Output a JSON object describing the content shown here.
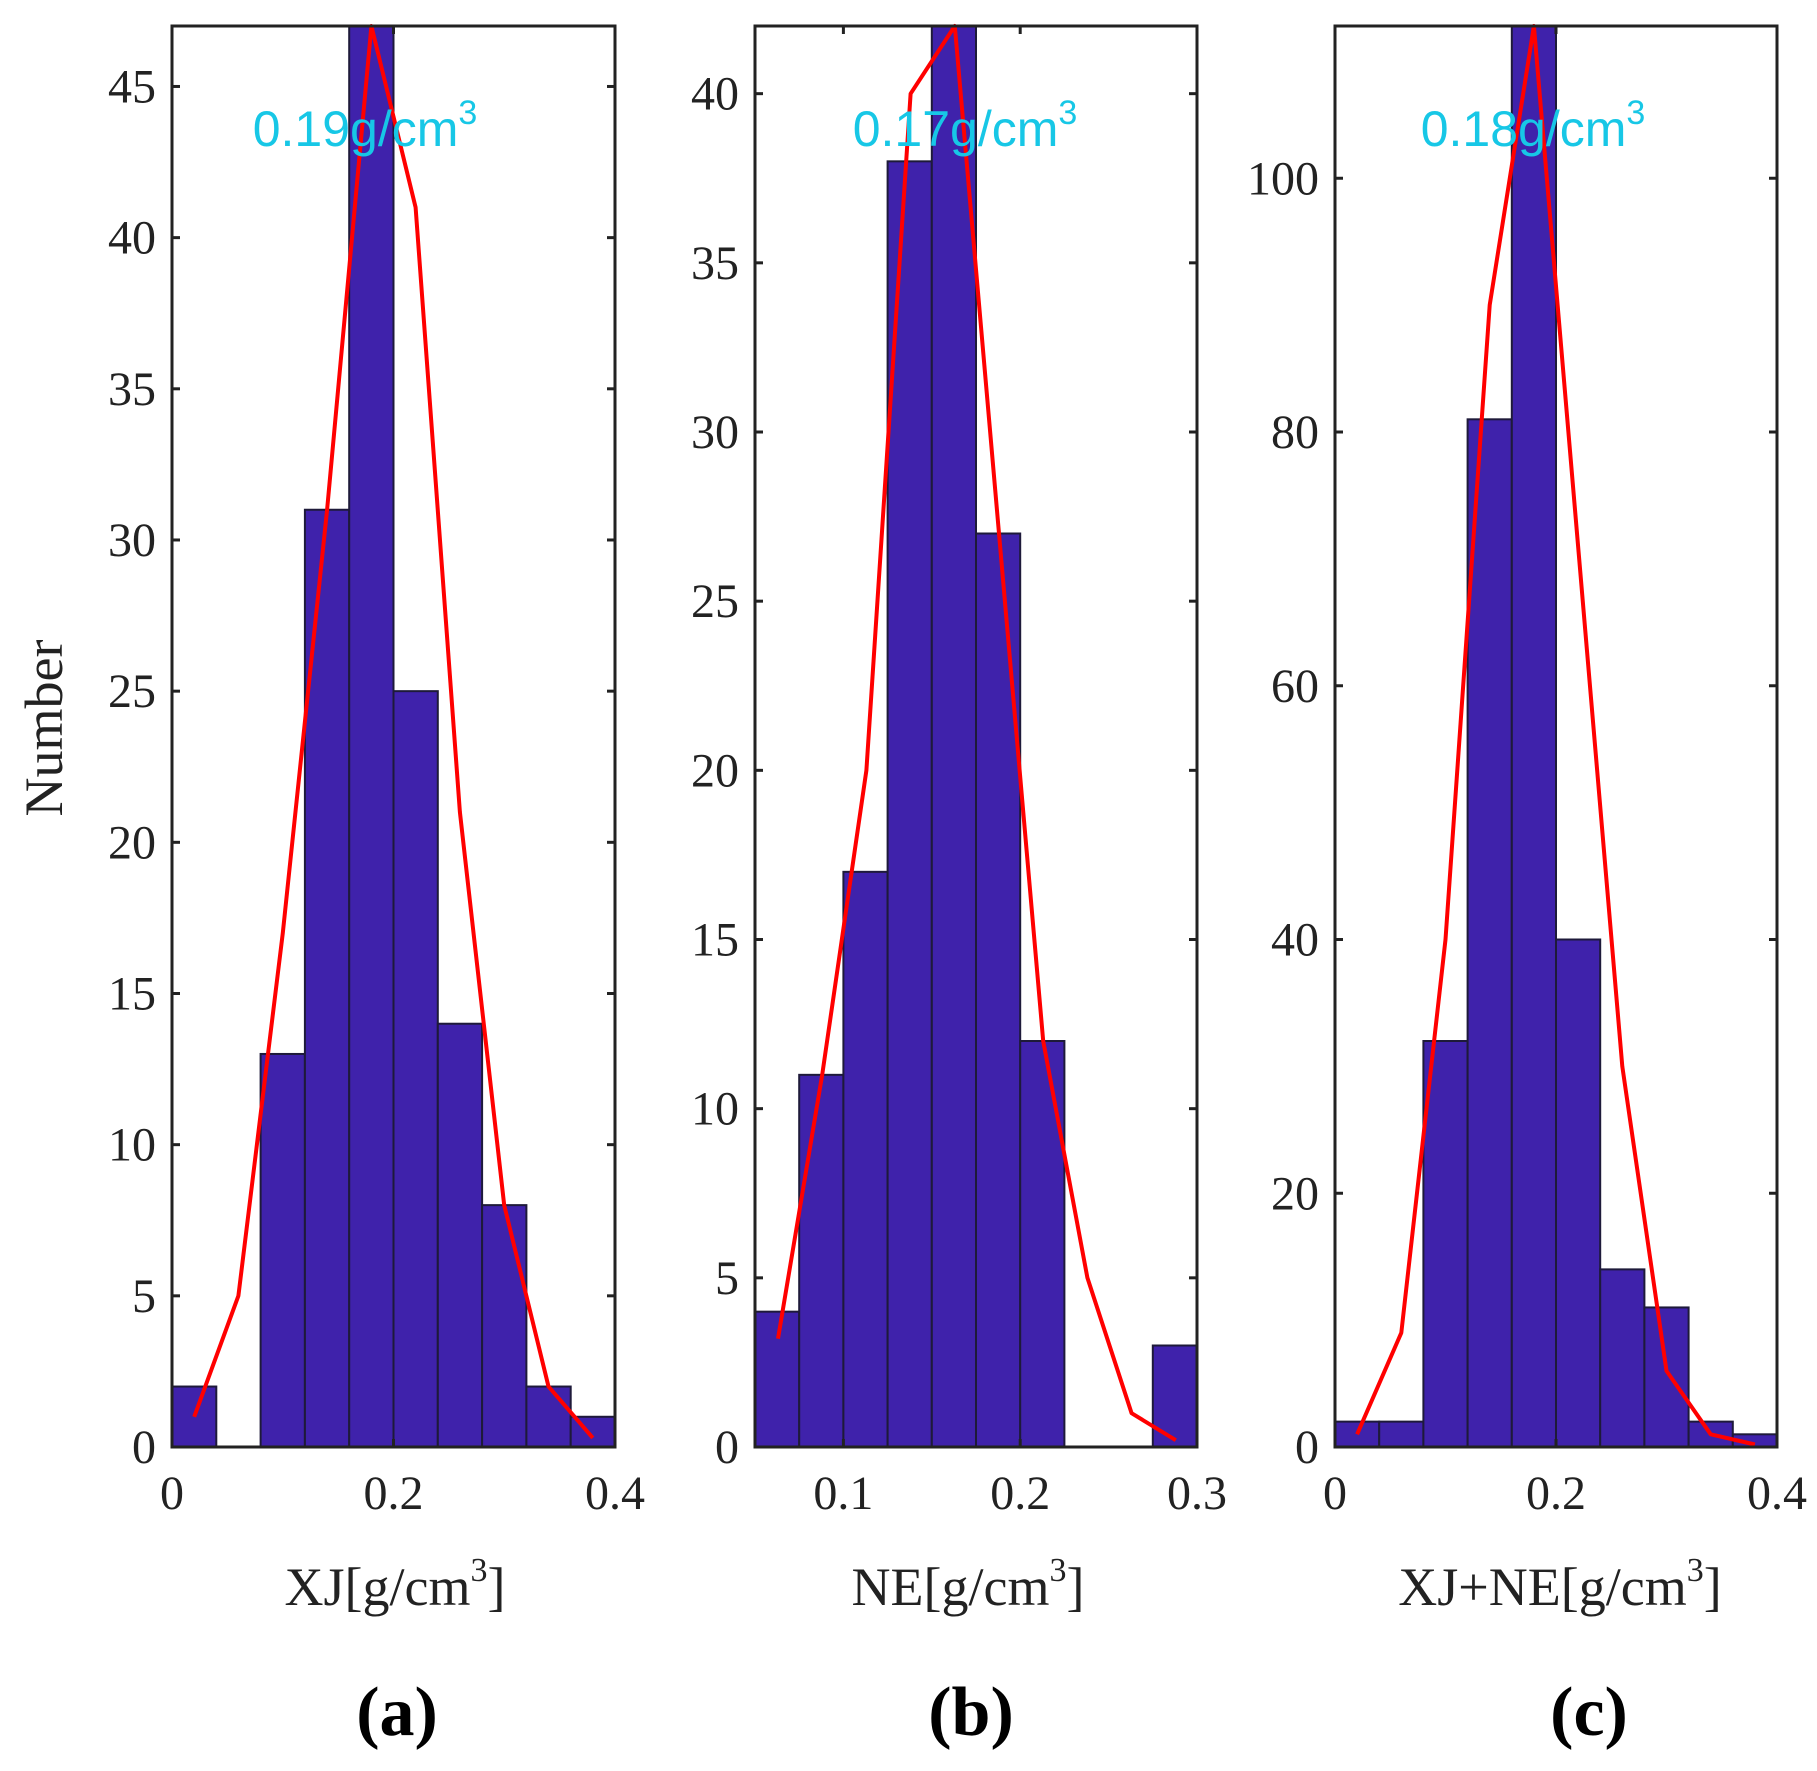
{
  "ylabel": "Number",
  "colors": {
    "bar": "#3f22ab",
    "barEdge": "#1e1a3a",
    "fit": "#ff0000",
    "annotation": "#17c7e6",
    "axis": "#222222"
  },
  "chart_data": [
    {
      "type": "bar",
      "panel_label": {
        "open": "(",
        "letter": "a",
        "close": ")"
      },
      "xlabel": {
        "main": "XJ[g/cm",
        "sup": "3",
        "close": "]"
      },
      "annotation": {
        "main": "0.19g/cm",
        "sup": "3"
      },
      "xlim": [
        0,
        0.4
      ],
      "ylim": [
        0,
        47
      ],
      "xticks": [
        0,
        0.2,
        0.4
      ],
      "xtick_labels": [
        "0",
        "0.2",
        "0.4"
      ],
      "yticks": [
        0,
        5,
        10,
        15,
        20,
        25,
        30,
        35,
        40,
        45
      ],
      "ytick_labels": [
        "0",
        "5",
        "10",
        "15",
        "20",
        "25",
        "30",
        "35",
        "40",
        "45"
      ],
      "bin_edges": [
        0,
        0.04,
        0.08,
        0.12,
        0.16,
        0.2,
        0.24,
        0.28,
        0.32,
        0.36,
        0.4
      ],
      "values": [
        2,
        0,
        13,
        31,
        47,
        25,
        14,
        8,
        2,
        1
      ],
      "fit": {
        "x": [
          0.02,
          0.06,
          0.1,
          0.14,
          0.18,
          0.22,
          0.26,
          0.3,
          0.34,
          0.38
        ],
        "y": [
          1,
          5,
          17,
          31,
          47,
          41,
          21,
          8,
          2,
          0.3
        ]
      }
    },
    {
      "type": "bar",
      "panel_label": {
        "open": "(",
        "letter": "b",
        "close": ")"
      },
      "xlabel": {
        "main": "NE[g/cm",
        "sup": "3",
        "close": "]"
      },
      "annotation": {
        "main": "0.17g/cm",
        "sup": "3"
      },
      "xlim": [
        0.05,
        0.3
      ],
      "ylim": [
        0,
        42
      ],
      "xticks": [
        0.1,
        0.2,
        0.3
      ],
      "xtick_labels": [
        "0.1",
        "0.2",
        "0.3"
      ],
      "yticks": [
        0,
        5,
        10,
        15,
        20,
        25,
        30,
        35,
        40
      ],
      "ytick_labels": [
        "0",
        "5",
        "10",
        "15",
        "20",
        "25",
        "30",
        "35",
        "40"
      ],
      "bin_edges": [
        0.05,
        0.075,
        0.1,
        0.125,
        0.15,
        0.175,
        0.2,
        0.225,
        0.25,
        0.275,
        0.3
      ],
      "values": [
        4,
        11,
        17,
        38,
        42,
        27,
        12,
        0,
        0,
        3
      ],
      "fit": {
        "x": [
          0.063,
          0.088,
          0.113,
          0.138,
          0.163,
          0.188,
          0.213,
          0.238,
          0.263,
          0.288
        ],
        "y": [
          3.2,
          11,
          20,
          40,
          42,
          27,
          12,
          5,
          1,
          0.2
        ]
      }
    },
    {
      "type": "bar",
      "panel_label": {
        "open": "(",
        "letter": "c",
        "close": ")"
      },
      "xlabel": {
        "main": "XJ+NE[g/cm",
        "sup": "3",
        "close": "]"
      },
      "annotation": {
        "main": "0.18g/cm",
        "sup": "3"
      },
      "xlim": [
        0,
        0.4
      ],
      "ylim": [
        0,
        112
      ],
      "xticks": [
        0,
        0.2,
        0.4
      ],
      "xtick_labels": [
        "0",
        "0.2",
        "0.4"
      ],
      "yticks": [
        0,
        20,
        40,
        60,
        80,
        100
      ],
      "ytick_labels": [
        "0",
        "20",
        "40",
        "60",
        "80",
        "100"
      ],
      "bin_edges": [
        0,
        0.04,
        0.08,
        0.12,
        0.16,
        0.2,
        0.24,
        0.28,
        0.32,
        0.36,
        0.4
      ],
      "values": [
        2,
        2,
        32,
        81,
        112,
        40,
        14,
        11,
        2,
        1
      ],
      "fit": {
        "x": [
          0.02,
          0.06,
          0.1,
          0.14,
          0.18,
          0.22,
          0.26,
          0.3,
          0.34,
          0.38
        ],
        "y": [
          1,
          9,
          40,
          90,
          112,
          71,
          30,
          6,
          1,
          0.2
        ]
      }
    }
  ]
}
